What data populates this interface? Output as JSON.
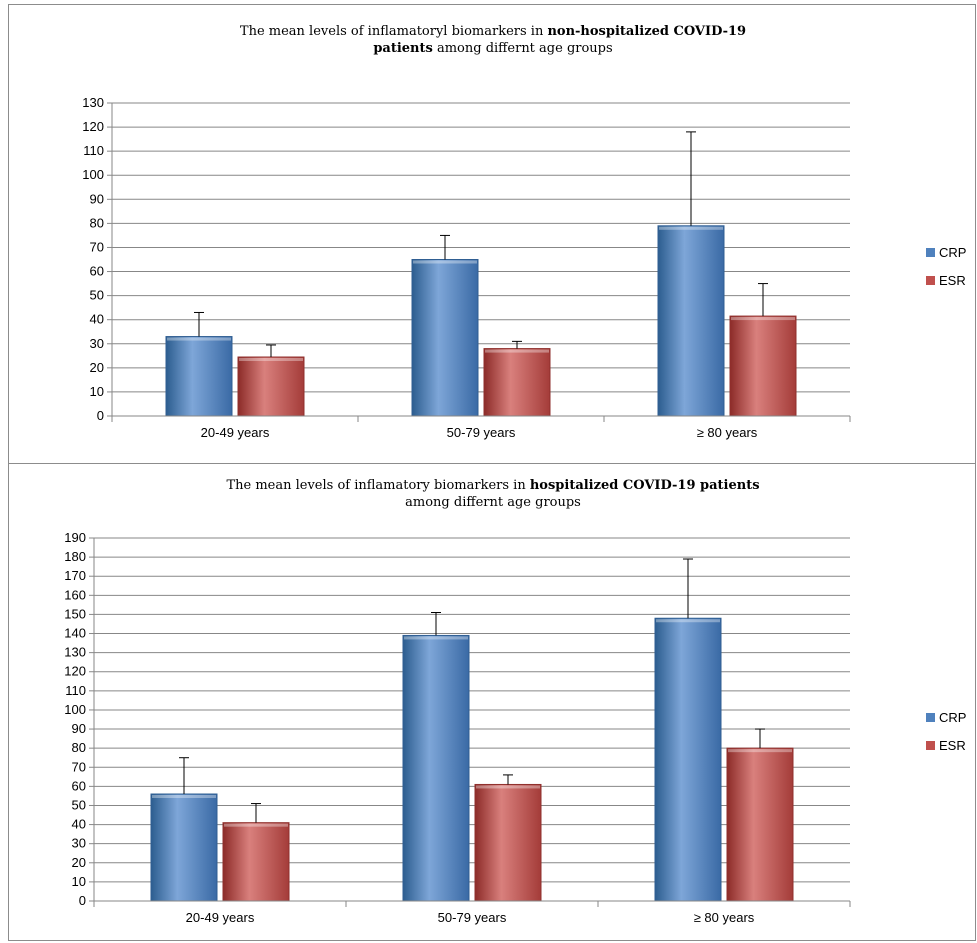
{
  "colors": {
    "CRP": "#4f81bd",
    "ESR": "#c0504d"
  },
  "chart_data": [
    {
      "type": "bar",
      "title_parts": [
        {
          "text": "The mean levels of  inflamatoryl biomarkers in ",
          "bold": false
        },
        {
          "text": "non-hospitalized COVID-19",
          "bold": true
        },
        {
          "text": "patients",
          "bold": true,
          "newline": true
        },
        {
          "text": " among differnt age groups",
          "bold": false
        }
      ],
      "categories": [
        "20-49 years",
        "50-79 years",
        "≥ 80 years"
      ],
      "series": [
        {
          "name": "CRP",
          "values": [
            33,
            65,
            79
          ],
          "errors": [
            43,
            75,
            118
          ]
        },
        {
          "name": "ESR",
          "values": [
            24.5,
            28,
            41.5
          ],
          "errors": [
            29.5,
            31,
            55
          ]
        }
      ],
      "ylim": [
        0,
        130
      ],
      "ytick_step": 10,
      "grid": true,
      "legend": "right"
    },
    {
      "type": "bar",
      "title_parts": [
        {
          "text": "The mean levels of  inflamatory biomarkers in ",
          "bold": false
        },
        {
          "text": "hospitalized COVID-19 patients",
          "bold": true
        },
        {
          "text": "among differnt age groups",
          "bold": false,
          "newline": true
        }
      ],
      "categories": [
        "20-49 years",
        "50-79 years",
        "≥ 80 years"
      ],
      "series": [
        {
          "name": "CRP",
          "values": [
            56,
            139,
            148
          ],
          "errors": [
            75,
            151,
            179
          ]
        },
        {
          "name": "ESR",
          "values": [
            41,
            61,
            80
          ],
          "errors": [
            51,
            66,
            90
          ]
        }
      ],
      "ylim": [
        0,
        190
      ],
      "ytick_step": 10,
      "grid": true,
      "legend": "right"
    }
  ]
}
